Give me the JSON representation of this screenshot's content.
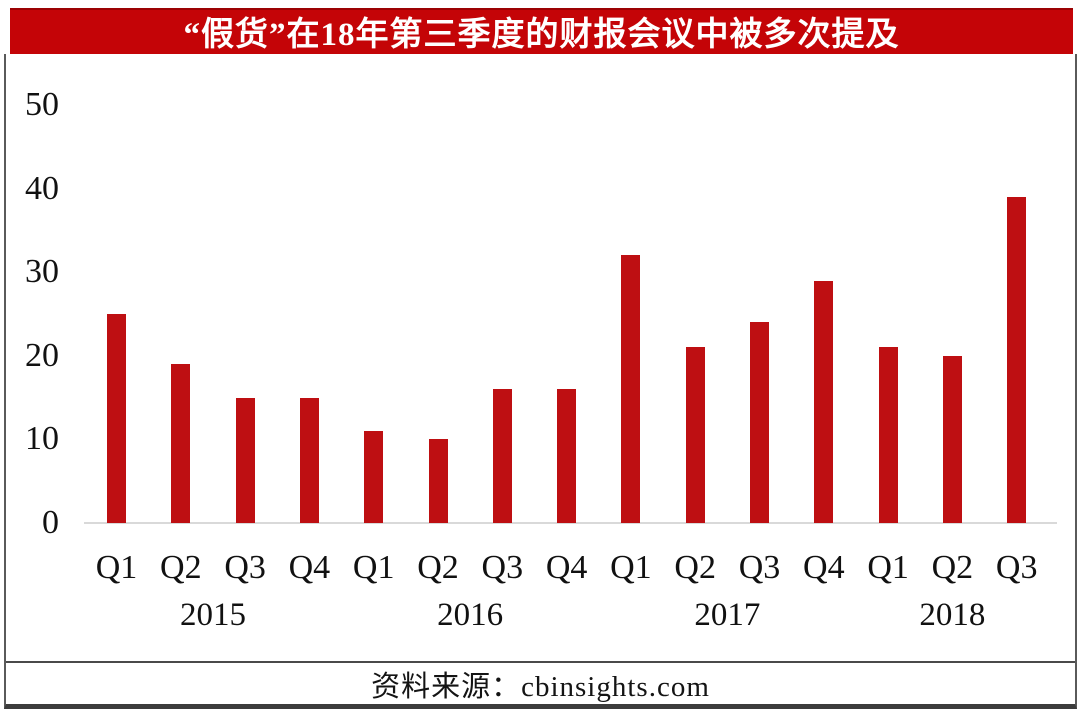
{
  "title": {
    "text": "“假货”在18年第三季度的财报会议中被多次提及",
    "bg_color": "#C40407",
    "text_color": "#FFFFFF"
  },
  "source": {
    "text": "资料来源：cbinsights.com"
  },
  "chart_data": {
    "type": "bar",
    "title": "“假货”在18年第三季度的财报会议中被多次提及",
    "categories": [
      "Q1",
      "Q2",
      "Q3",
      "Q4",
      "Q1",
      "Q2",
      "Q3",
      "Q4",
      "Q1",
      "Q2",
      "Q3",
      "Q4",
      "Q1",
      "Q2",
      "Q3"
    ],
    "values": [
      25,
      19,
      15,
      15,
      11,
      10,
      16,
      16,
      32,
      21,
      24,
      29,
      21,
      20,
      39
    ],
    "year_groups": [
      {
        "label": "2015",
        "count": 4
      },
      {
        "label": "2016",
        "count": 4
      },
      {
        "label": "2017",
        "count": 4
      },
      {
        "label": "2018",
        "count": 3
      }
    ],
    "y_ticks": [
      0,
      10,
      20,
      30,
      40,
      50
    ],
    "ylim": [
      0,
      50
    ],
    "xlabel": "",
    "ylabel": "",
    "grid": false,
    "legend": "none",
    "bar_color": "#BE0F12",
    "axis_line_color": "#D9D9D9",
    "tick_label_color": "#111111",
    "source_note": "资料来源：cbinsights.com"
  }
}
